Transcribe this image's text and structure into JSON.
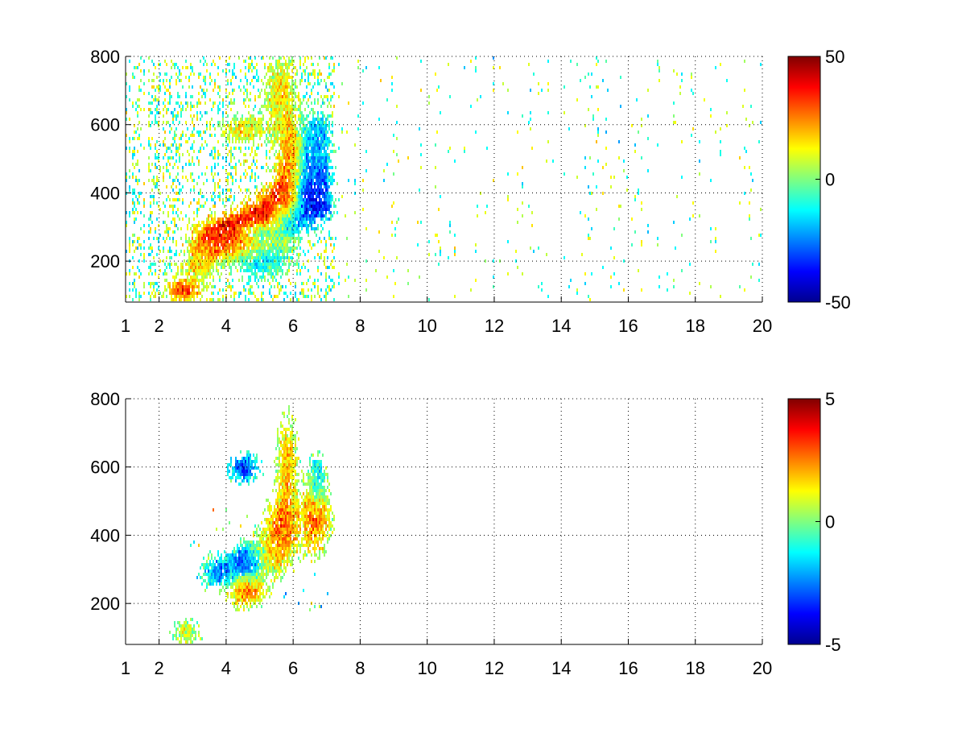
{
  "chart_data": [
    {
      "type": "heatmap",
      "title": "",
      "xlabel": "",
      "ylabel": "",
      "xlim": [
        1,
        20
      ],
      "ylim": [
        80,
        800
      ],
      "xticks": [
        1,
        2,
        4,
        6,
        8,
        10,
        12,
        14,
        16,
        18,
        20
      ],
      "yticks": [
        200,
        400,
        600,
        800
      ],
      "grid": true,
      "colormap": "jet",
      "clim": [
        -50,
        50
      ],
      "colorbar_ticks": [
        -50,
        0,
        50
      ],
      "blobs": [
        {
          "x": 2.7,
          "y": 120,
          "sx": 0.35,
          "sy": 25,
          "v": 32
        },
        {
          "x": 3.6,
          "y": 270,
          "sx": 0.45,
          "sy": 40,
          "v": 30
        },
        {
          "x": 4.4,
          "y": 285,
          "sx": 0.5,
          "sy": 40,
          "v": 42
        },
        {
          "x": 5.1,
          "y": 330,
          "sx": 0.45,
          "sy": 45,
          "v": 40
        },
        {
          "x": 5.7,
          "y": 380,
          "sx": 0.3,
          "sy": 70,
          "v": 35
        },
        {
          "x": 5.9,
          "y": 520,
          "sx": 0.22,
          "sy": 70,
          "v": 20
        },
        {
          "x": 5.6,
          "y": 690,
          "sx": 0.3,
          "sy": 80,
          "v": 14
        },
        {
          "x": 4.5,
          "y": 590,
          "sx": 0.4,
          "sy": 25,
          "v": 14
        },
        {
          "x": 3.2,
          "y": 200,
          "sx": 0.3,
          "sy": 35,
          "v": 14
        },
        {
          "x": 5.0,
          "y": 290,
          "sx": 0.35,
          "sy": 18,
          "v": -40
        },
        {
          "x": 5.8,
          "y": 320,
          "sx": 0.3,
          "sy": 30,
          "v": -48
        },
        {
          "x": 6.6,
          "y": 380,
          "sx": 0.35,
          "sy": 45,
          "v": -42
        },
        {
          "x": 6.6,
          "y": 470,
          "sx": 0.3,
          "sy": 70,
          "v": -25
        },
        {
          "x": 6.7,
          "y": 560,
          "sx": 0.25,
          "sy": 60,
          "v": -18
        },
        {
          "x": 5.0,
          "y": 220,
          "sx": 0.6,
          "sy": 40,
          "v": -15
        }
      ]
    },
    {
      "type": "heatmap",
      "title": "",
      "xlabel": "",
      "ylabel": "",
      "xlim": [
        1,
        20
      ],
      "ylim": [
        80,
        800
      ],
      "xticks": [
        1,
        2,
        4,
        6,
        8,
        10,
        12,
        14,
        16,
        18,
        20
      ],
      "yticks": [
        200,
        400,
        600,
        800
      ],
      "grid": true,
      "colormap": "jet",
      "clim": [
        -5,
        5
      ],
      "colorbar_ticks": [
        -5,
        0,
        5
      ],
      "blobs": [
        {
          "x": 2.8,
          "y": 120,
          "sx": 0.25,
          "sy": 20,
          "v": 0.8
        },
        {
          "x": 3.8,
          "y": 300,
          "sx": 0.35,
          "sy": 30,
          "v": -2.5
        },
        {
          "x": 4.6,
          "y": 330,
          "sx": 0.3,
          "sy": 30,
          "v": -3.5
        },
        {
          "x": 4.6,
          "y": 240,
          "sx": 0.35,
          "sy": 30,
          "v": 2.5
        },
        {
          "x": 5.6,
          "y": 420,
          "sx": 0.3,
          "sy": 60,
          "v": 2.8
        },
        {
          "x": 5.8,
          "y": 600,
          "sx": 0.2,
          "sy": 90,
          "v": 2.0
        },
        {
          "x": 6.6,
          "y": 450,
          "sx": 0.3,
          "sy": 60,
          "v": 3.0
        },
        {
          "x": 6.7,
          "y": 560,
          "sx": 0.15,
          "sy": 50,
          "v": -1.5
        },
        {
          "x": 4.5,
          "y": 600,
          "sx": 0.3,
          "sy": 25,
          "v": -3.5
        },
        {
          "x": 5.2,
          "y": 350,
          "sx": 0.4,
          "sy": 40,
          "v": 1.2
        }
      ]
    }
  ]
}
